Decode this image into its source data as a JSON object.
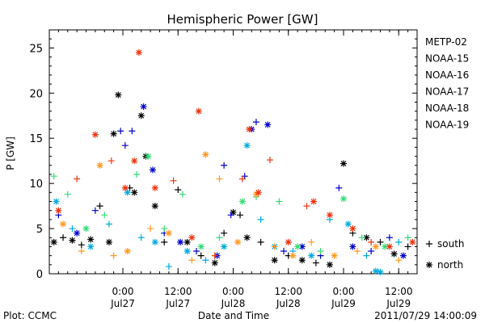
{
  "chart_data": {
    "type": "scatter",
    "title": "Hemispheric Power [GW]",
    "ylabel": "P [GW]",
    "xlabel": "Date and Time",
    "ylim": [
      0,
      27
    ],
    "xlim": [
      "2011-07-26 08:00",
      "2011-07-29 16:00"
    ],
    "yticks": [
      0,
      5,
      10,
      15,
      20,
      25
    ],
    "xticks": [
      {
        "x": "2011-07-27 00:00",
        "time": "0:00",
        "date": "Jul27"
      },
      {
        "x": "2011-07-27 12:00",
        "time": "12:00",
        "date": "Jul27"
      },
      {
        "x": "2011-07-28 00:00",
        "time": "0:00",
        "date": "Jul28"
      },
      {
        "x": "2011-07-28 12:00",
        "time": "12:00",
        "date": "Jul28"
      },
      {
        "x": "2011-07-29 00:00",
        "time": "0:00",
        "date": "Jul29"
      },
      {
        "x": "2011-07-29 12:00",
        "time": "12:00",
        "date": "Jul29"
      }
    ],
    "grid": false,
    "legend_position": "right",
    "markers": [
      {
        "symbol": "+",
        "label": "south"
      },
      {
        "symbol": "*",
        "label": "north"
      }
    ],
    "series": [
      {
        "name": "METP-02",
        "color": "#000000",
        "points": [
          {
            "x": "2011-07-26 09:00",
            "y": 3.5,
            "m": "*"
          },
          {
            "x": "2011-07-26 11:00",
            "y": 4.0,
            "m": "+"
          },
          {
            "x": "2011-07-26 13:00",
            "y": 3.7,
            "m": "*"
          },
          {
            "x": "2011-07-26 15:00",
            "y": 3.2,
            "m": "+"
          },
          {
            "x": "2011-07-26 17:00",
            "y": 3.8,
            "m": "*"
          },
          {
            "x": "2011-07-26 19:00",
            "y": 7.5,
            "m": "+"
          },
          {
            "x": "2011-07-26 21:00",
            "y": 3.5,
            "m": "*"
          },
          {
            "x": "2011-07-26 22:00",
            "y": 15.5,
            "m": "*"
          },
          {
            "x": "2011-07-26 23:00",
            "y": 19.8,
            "m": "*"
          },
          {
            "x": "2011-07-27 01:30",
            "y": 9.5,
            "m": "+"
          },
          {
            "x": "2011-07-27 02:30",
            "y": 9.0,
            "m": "*"
          },
          {
            "x": "2011-07-27 04:00",
            "y": 17.5,
            "m": "*"
          },
          {
            "x": "2011-07-27 05:00",
            "y": 13.0,
            "m": "*"
          },
          {
            "x": "2011-07-27 07:00",
            "y": 7.5,
            "m": "*"
          },
          {
            "x": "2011-07-27 09:00",
            "y": 3.5,
            "m": "+"
          },
          {
            "x": "2011-07-27 12:00",
            "y": 9.3,
            "m": "+"
          },
          {
            "x": "2011-07-27 14:00",
            "y": 3.5,
            "m": "*"
          },
          {
            "x": "2011-07-27 17:00",
            "y": 2.0,
            "m": "+"
          },
          {
            "x": "2011-07-27 20:00",
            "y": 1.2,
            "m": "*"
          },
          {
            "x": "2011-07-27 22:00",
            "y": 4.5,
            "m": "+"
          },
          {
            "x": "2011-07-28 00:00",
            "y": 6.8,
            "m": "*"
          },
          {
            "x": "2011-07-28 01:30",
            "y": 6.5,
            "m": "+"
          },
          {
            "x": "2011-07-28 03:00",
            "y": 4.0,
            "m": "*"
          },
          {
            "x": "2011-07-28 06:00",
            "y": 3.5,
            "m": "+"
          },
          {
            "x": "2011-07-28 09:00",
            "y": 1.5,
            "m": "*"
          },
          {
            "x": "2011-07-28 12:00",
            "y": 2.0,
            "m": "+"
          },
          {
            "x": "2011-07-28 15:00",
            "y": 1.5,
            "m": "*"
          },
          {
            "x": "2011-07-28 18:00",
            "y": 1.2,
            "m": "+"
          },
          {
            "x": "2011-07-28 21:00",
            "y": 1.0,
            "m": "*"
          },
          {
            "x": "2011-07-29 00:00",
            "y": 12.2,
            "m": "*"
          },
          {
            "x": "2011-07-29 02:00",
            "y": 4.5,
            "m": "+"
          },
          {
            "x": "2011-07-29 05:00",
            "y": 4.0,
            "m": "*"
          },
          {
            "x": "2011-07-29 08:00",
            "y": 3.5,
            "m": "+"
          },
          {
            "x": "2011-07-29 11:00",
            "y": 2.2,
            "m": "*"
          },
          {
            "x": "2011-07-29 14:00",
            "y": 3.0,
            "m": "+"
          }
        ]
      },
      {
        "name": "NOAA-15",
        "color": "#0000cc",
        "points": [
          {
            "x": "2011-07-26 10:00",
            "y": 6.5,
            "m": "+"
          },
          {
            "x": "2011-07-26 14:00",
            "y": 4.5,
            "m": "*"
          },
          {
            "x": "2011-07-26 18:00",
            "y": 7.0,
            "m": "+"
          },
          {
            "x": "2011-07-26 23:30",
            "y": 15.8,
            "m": "+"
          },
          {
            "x": "2011-07-27 00:30",
            "y": 14.2,
            "m": "+"
          },
          {
            "x": "2011-07-27 02:00",
            "y": 15.8,
            "m": "+"
          },
          {
            "x": "2011-07-27 04:30",
            "y": 18.5,
            "m": "*"
          },
          {
            "x": "2011-07-27 06:30",
            "y": 11.5,
            "m": "*"
          },
          {
            "x": "2011-07-27 09:00",
            "y": 4.5,
            "m": "+"
          },
          {
            "x": "2011-07-27 12:30",
            "y": 3.5,
            "m": "*"
          },
          {
            "x": "2011-07-27 16:00",
            "y": 2.5,
            "m": "+"
          },
          {
            "x": "2011-07-27 20:30",
            "y": 2.0,
            "m": "*"
          },
          {
            "x": "2011-07-27 22:00",
            "y": 12.0,
            "m": "+"
          },
          {
            "x": "2011-07-27 23:30",
            "y": 6.5,
            "m": "+"
          },
          {
            "x": "2011-07-28 02:30",
            "y": 10.8,
            "m": "+"
          },
          {
            "x": "2011-07-28 04:00",
            "y": 16.0,
            "m": "*"
          },
          {
            "x": "2011-07-28 05:00",
            "y": 16.8,
            "m": "+"
          },
          {
            "x": "2011-07-28 07:30",
            "y": 16.5,
            "m": "*"
          },
          {
            "x": "2011-07-28 11:00",
            "y": 2.5,
            "m": "+"
          },
          {
            "x": "2011-07-28 15:00",
            "y": 3.0,
            "m": "*"
          },
          {
            "x": "2011-07-28 19:00",
            "y": 2.0,
            "m": "+"
          },
          {
            "x": "2011-07-28 23:00",
            "y": 9.5,
            "m": "+"
          },
          {
            "x": "2011-07-29 02:00",
            "y": 3.0,
            "m": "*"
          },
          {
            "x": "2011-07-29 06:00",
            "y": 2.5,
            "m": "+"
          },
          {
            "x": "2011-07-29 10:00",
            "y": 4.0,
            "m": "+"
          },
          {
            "x": "2011-07-29 13:00",
            "y": 2.0,
            "m": "*"
          }
        ]
      },
      {
        "name": "NOAA-16",
        "color": "#00aadd",
        "points": [
          {
            "x": "2011-07-26 09:30",
            "y": 8.0,
            "m": "*"
          },
          {
            "x": "2011-07-26 13:00",
            "y": 5.0,
            "m": "+"
          },
          {
            "x": "2011-07-26 17:00",
            "y": 3.0,
            "m": "*"
          },
          {
            "x": "2011-07-26 21:00",
            "y": 5.5,
            "m": "+"
          },
          {
            "x": "2011-07-27 01:00",
            "y": 9.0,
            "m": "*"
          },
          {
            "x": "2011-07-27 04:00",
            "y": 4.0,
            "m": "+"
          },
          {
            "x": "2011-07-27 07:00",
            "y": 3.5,
            "m": "*"
          },
          {
            "x": "2011-07-27 10:00",
            "y": 0.8,
            "m": "+"
          },
          {
            "x": "2011-07-27 14:00",
            "y": 2.5,
            "m": "*"
          },
          {
            "x": "2011-07-27 18:00",
            "y": 1.5,
            "m": "+"
          },
          {
            "x": "2011-07-27 22:00",
            "y": 3.0,
            "m": "*"
          },
          {
            "x": "2011-07-28 03:00",
            "y": 14.2,
            "m": "*"
          },
          {
            "x": "2011-07-28 06:00",
            "y": 6.0,
            "m": "+"
          },
          {
            "x": "2011-07-28 09:00",
            "y": 3.0,
            "m": "*"
          },
          {
            "x": "2011-07-28 13:00",
            "y": 2.5,
            "m": "+"
          },
          {
            "x": "2011-07-28 17:00",
            "y": 2.0,
            "m": "*"
          },
          {
            "x": "2011-07-28 21:00",
            "y": 6.0,
            "m": "+"
          },
          {
            "x": "2011-07-29 01:00",
            "y": 5.5,
            "m": "*"
          },
          {
            "x": "2011-07-29 05:00",
            "y": 2.0,
            "m": "+"
          },
          {
            "x": "2011-07-29 07:00",
            "y": 0.3,
            "m": "*"
          },
          {
            "x": "2011-07-29 08:00",
            "y": 0.2,
            "m": "*"
          },
          {
            "x": "2011-07-29 12:00",
            "y": 3.5,
            "m": "+"
          }
        ]
      },
      {
        "name": "NOAA-17",
        "color": "#33dd77",
        "points": [
          {
            "x": "2011-07-26 09:00",
            "y": 10.8,
            "m": "+"
          },
          {
            "x": "2011-07-26 12:00",
            "y": 8.8,
            "m": "+"
          },
          {
            "x": "2011-07-26 16:00",
            "y": 5.0,
            "m": "*"
          },
          {
            "x": "2011-07-26 20:00",
            "y": 6.5,
            "m": "+"
          },
          {
            "x": "2011-07-27 03:00",
            "y": 11.0,
            "m": "+"
          },
          {
            "x": "2011-07-27 05:30",
            "y": 13.0,
            "m": "*"
          },
          {
            "x": "2011-07-27 09:00",
            "y": 5.0,
            "m": "+"
          },
          {
            "x": "2011-07-27 13:00",
            "y": 8.8,
            "m": "+"
          },
          {
            "x": "2011-07-27 17:00",
            "y": 3.0,
            "m": "*"
          },
          {
            "x": "2011-07-27 21:00",
            "y": 4.0,
            "m": "+"
          },
          {
            "x": "2011-07-28 02:00",
            "y": 8.0,
            "m": "*"
          },
          {
            "x": "2011-07-28 05:00",
            "y": 8.5,
            "m": "+"
          },
          {
            "x": "2011-07-28 10:00",
            "y": 8.0,
            "m": "+"
          },
          {
            "x": "2011-07-28 14:00",
            "y": 3.0,
            "m": "*"
          },
          {
            "x": "2011-07-28 19:00",
            "y": 2.5,
            "m": "+"
          },
          {
            "x": "2011-07-29 00:00",
            "y": 8.3,
            "m": "*"
          },
          {
            "x": "2011-07-29 04:00",
            "y": 4.0,
            "m": "+"
          },
          {
            "x": "2011-07-29 09:00",
            "y": 3.0,
            "m": "*"
          },
          {
            "x": "2011-07-29 14:00",
            "y": 4.0,
            "m": "+"
          }
        ]
      },
      {
        "name": "NOAA-18",
        "color": "#ff9922",
        "points": [
          {
            "x": "2011-07-26 11:00",
            "y": 5.5,
            "m": "*"
          },
          {
            "x": "2011-07-26 15:00",
            "y": 2.5,
            "m": "+"
          },
          {
            "x": "2011-07-26 19:00",
            "y": 12.0,
            "m": "*"
          },
          {
            "x": "2011-07-26 22:00",
            "y": 2.0,
            "m": "+"
          },
          {
            "x": "2011-07-27 01:00",
            "y": 2.5,
            "m": "*"
          },
          {
            "x": "2011-07-27 06:00",
            "y": 5.0,
            "m": "+"
          },
          {
            "x": "2011-07-27 10:00",
            "y": 4.5,
            "m": "*"
          },
          {
            "x": "2011-07-27 15:00",
            "y": 1.5,
            "m": "+"
          },
          {
            "x": "2011-07-27 18:00",
            "y": 13.2,
            "m": "*"
          },
          {
            "x": "2011-07-27 21:00",
            "y": 10.5,
            "m": "+"
          },
          {
            "x": "2011-07-28 01:00",
            "y": 3.5,
            "m": "*"
          },
          {
            "x": "2011-07-28 05:00",
            "y": 8.8,
            "m": "*"
          },
          {
            "x": "2011-07-28 09:00",
            "y": 3.0,
            "m": "+"
          },
          {
            "x": "2011-07-28 13:00",
            "y": 2.0,
            "m": "*"
          },
          {
            "x": "2011-07-28 17:00",
            "y": 3.5,
            "m": "+"
          },
          {
            "x": "2011-07-28 22:00",
            "y": 2.0,
            "m": "*"
          },
          {
            "x": "2011-07-29 03:00",
            "y": 2.5,
            "m": "+"
          },
          {
            "x": "2011-07-29 07:00",
            "y": 3.0,
            "m": "*"
          },
          {
            "x": "2011-07-29 12:00",
            "y": 1.5,
            "m": "+"
          }
        ]
      },
      {
        "name": "NOAA-19",
        "color": "#ee3311",
        "points": [
          {
            "x": "2011-07-26 10:00",
            "y": 7.0,
            "m": "*"
          },
          {
            "x": "2011-07-26 14:00",
            "y": 10.5,
            "m": "+"
          },
          {
            "x": "2011-07-26 18:00",
            "y": 15.4,
            "m": "*"
          },
          {
            "x": "2011-07-26 21:30",
            "y": 12.5,
            "m": "+"
          },
          {
            "x": "2011-07-27 00:30",
            "y": 9.5,
            "m": "*"
          },
          {
            "x": "2011-07-27 02:30",
            "y": 12.5,
            "m": "*"
          },
          {
            "x": "2011-07-27 03:30",
            "y": 24.5,
            "m": "*"
          },
          {
            "x": "2011-07-27 07:00",
            "y": 9.5,
            "m": "*"
          },
          {
            "x": "2011-07-27 11:00",
            "y": 10.3,
            "m": "+"
          },
          {
            "x": "2011-07-27 15:00",
            "y": 4.0,
            "m": "*"
          },
          {
            "x": "2011-07-27 16:30",
            "y": 18.0,
            "m": "*"
          },
          {
            "x": "2011-07-27 20:00",
            "y": 2.0,
            "m": "+"
          },
          {
            "x": "2011-07-28 02:00",
            "y": 10.5,
            "m": "+"
          },
          {
            "x": "2011-07-28 03:30",
            "y": 16.0,
            "m": "*"
          },
          {
            "x": "2011-07-28 05:30",
            "y": 9.0,
            "m": "*"
          },
          {
            "x": "2011-07-28 08:00",
            "y": 12.6,
            "m": "+"
          },
          {
            "x": "2011-07-28 12:00",
            "y": 3.5,
            "m": "*"
          },
          {
            "x": "2011-07-28 16:00",
            "y": 7.5,
            "m": "+"
          },
          {
            "x": "2011-07-28 17:30",
            "y": 8.0,
            "m": "*"
          },
          {
            "x": "2011-07-28 21:00",
            "y": 6.5,
            "m": "*"
          },
          {
            "x": "2011-07-29 02:00",
            "y": 5.0,
            "m": "*"
          },
          {
            "x": "2011-07-29 06:00",
            "y": 3.5,
            "m": "+"
          },
          {
            "x": "2011-07-29 10:00",
            "y": 3.0,
            "m": "*"
          },
          {
            "x": "2011-07-29 15:00",
            "y": 3.5,
            "m": "*"
          }
        ]
      }
    ]
  },
  "footer": {
    "plot_credit": "Plot: CCMC",
    "timestamp": "2011/07/29 14:00:09"
  }
}
